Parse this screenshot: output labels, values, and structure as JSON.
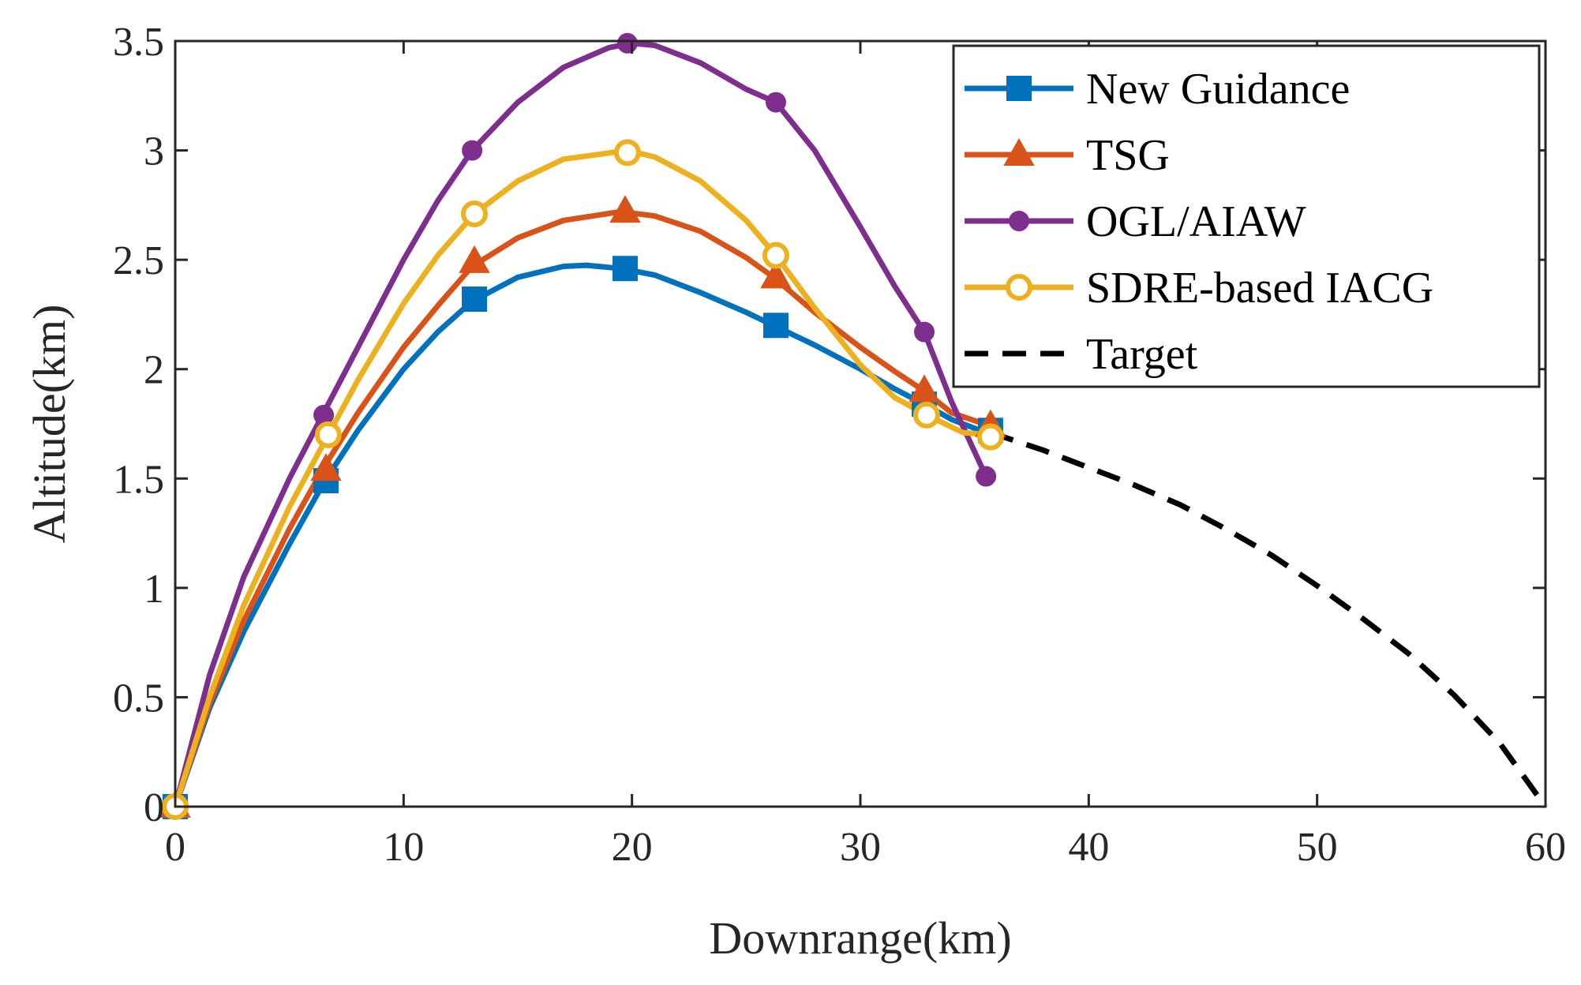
{
  "chart_data": {
    "type": "line",
    "title": "",
    "xlabel": "Downrange(km)",
    "ylabel": "Altitude(km)",
    "xlim": [
      0,
      60
    ],
    "ylim": [
      0,
      3.5
    ],
    "xticks": [
      0,
      10,
      20,
      30,
      40,
      50,
      60
    ],
    "xtick_labels": [
      "0",
      "10",
      "20",
      "30",
      "40",
      "50",
      "60"
    ],
    "yticks": [
      0,
      0.5,
      1,
      1.5,
      2,
      2.5,
      3,
      3.5
    ],
    "ytick_labels": [
      "0",
      "0.5",
      "1",
      "1.5",
      "2",
      "2.5",
      "3",
      "3.5"
    ],
    "grid": false,
    "legend_position": "top-right",
    "series": [
      {
        "name": "New Guidance",
        "color": "#0072BD",
        "marker": "square",
        "dash": "solid",
        "curve": [
          [
            0,
            0
          ],
          [
            1.5,
            0.45
          ],
          [
            3,
            0.8
          ],
          [
            5,
            1.2
          ],
          [
            6.5,
            1.48
          ],
          [
            8,
            1.72
          ],
          [
            10,
            2.0
          ],
          [
            11.5,
            2.17
          ],
          [
            13,
            2.31
          ],
          [
            15,
            2.42
          ],
          [
            17,
            2.47
          ],
          [
            18,
            2.475
          ],
          [
            19.5,
            2.46
          ],
          [
            21,
            2.43
          ],
          [
            23,
            2.35
          ],
          [
            25,
            2.26
          ],
          [
            26.2,
            2.2
          ],
          [
            28,
            2.11
          ],
          [
            30,
            2.0
          ],
          [
            31.5,
            1.91
          ],
          [
            32.8,
            1.84
          ],
          [
            34,
            1.77
          ],
          [
            35.5,
            1.71
          ]
        ],
        "markers": [
          [
            0,
            0
          ],
          [
            6.6,
            1.49
          ],
          [
            13.1,
            2.32
          ],
          [
            19.7,
            2.46
          ],
          [
            26.3,
            2.2
          ],
          [
            32.8,
            1.84
          ],
          [
            35.7,
            1.72
          ]
        ]
      },
      {
        "name": "TSG",
        "color": "#D95319",
        "marker": "triangle",
        "dash": "solid",
        "curve": [
          [
            0,
            0
          ],
          [
            1.5,
            0.47
          ],
          [
            3,
            0.85
          ],
          [
            5,
            1.27
          ],
          [
            6.5,
            1.55
          ],
          [
            8,
            1.8
          ],
          [
            10,
            2.1
          ],
          [
            11.5,
            2.29
          ],
          [
            13,
            2.47
          ],
          [
            15,
            2.6
          ],
          [
            17,
            2.68
          ],
          [
            19.5,
            2.72
          ],
          [
            21,
            2.7
          ],
          [
            23,
            2.63
          ],
          [
            25,
            2.51
          ],
          [
            26.2,
            2.42
          ],
          [
            28,
            2.26
          ],
          [
            30,
            2.1
          ],
          [
            31.5,
            1.99
          ],
          [
            32.8,
            1.9
          ],
          [
            34,
            1.8
          ],
          [
            35.7,
            1.74
          ]
        ],
        "markers": [
          [
            0,
            0
          ],
          [
            6.6,
            1.54
          ],
          [
            13.1,
            2.49
          ],
          [
            19.7,
            2.72
          ],
          [
            26.3,
            2.42
          ],
          [
            32.8,
            1.9
          ],
          [
            35.7,
            1.74
          ]
        ]
      },
      {
        "name": "OGL/AIAW",
        "color": "#7E2F8E",
        "marker": "filled-circle",
        "dash": "solid",
        "curve": [
          [
            0,
            0
          ],
          [
            1.5,
            0.6
          ],
          [
            3,
            1.05
          ],
          [
            5,
            1.5
          ],
          [
            6.5,
            1.8
          ],
          [
            8,
            2.1
          ],
          [
            10,
            2.5
          ],
          [
            11.5,
            2.77
          ],
          [
            13,
            3.0
          ],
          [
            15,
            3.22
          ],
          [
            17,
            3.38
          ],
          [
            19,
            3.47
          ],
          [
            20,
            3.49
          ],
          [
            21,
            3.48
          ],
          [
            23,
            3.4
          ],
          [
            25,
            3.28
          ],
          [
            26.3,
            3.22
          ],
          [
            28,
            3.0
          ],
          [
            30,
            2.65
          ],
          [
            31.5,
            2.38
          ],
          [
            32.8,
            2.17
          ],
          [
            34,
            1.85
          ],
          [
            35.5,
            1.51
          ]
        ],
        "markers": [
          [
            0,
            0
          ],
          [
            6.5,
            1.79
          ],
          [
            13.0,
            3.0
          ],
          [
            19.8,
            3.49
          ],
          [
            26.3,
            3.22
          ],
          [
            32.8,
            2.17
          ],
          [
            35.5,
            1.51
          ]
        ]
      },
      {
        "name": "SDRE-based IACG",
        "color": "#EDB120",
        "marker": "open-circle",
        "dash": "solid",
        "curve": [
          [
            0,
            0
          ],
          [
            1.5,
            0.5
          ],
          [
            3,
            0.92
          ],
          [
            5,
            1.37
          ],
          [
            6.7,
            1.7
          ],
          [
            8,
            1.95
          ],
          [
            10,
            2.3
          ],
          [
            11.5,
            2.52
          ],
          [
            13.1,
            2.71
          ],
          [
            15,
            2.86
          ],
          [
            17,
            2.96
          ],
          [
            19.8,
            3.0
          ],
          [
            21,
            2.97
          ],
          [
            23,
            2.86
          ],
          [
            25,
            2.68
          ],
          [
            26.3,
            2.52
          ],
          [
            28,
            2.28
          ],
          [
            30,
            2.02
          ],
          [
            31.5,
            1.87
          ],
          [
            32.9,
            1.79
          ],
          [
            34.5,
            1.71
          ],
          [
            35.7,
            1.7
          ]
        ],
        "markers": [
          [
            0,
            0
          ],
          [
            6.7,
            1.7
          ],
          [
            13.1,
            2.71
          ],
          [
            19.8,
            2.99
          ],
          [
            26.3,
            2.52
          ],
          [
            32.9,
            1.79
          ],
          [
            35.7,
            1.69
          ]
        ]
      },
      {
        "name": "Target",
        "color": "#000000",
        "marker": "none",
        "dash": "dashed",
        "curve": [
          [
            35.7,
            1.71
          ],
          [
            38,
            1.63
          ],
          [
            40,
            1.55
          ],
          [
            42,
            1.47
          ],
          [
            44,
            1.38
          ],
          [
            46,
            1.27
          ],
          [
            48,
            1.15
          ],
          [
            50,
            1.01
          ],
          [
            52,
            0.86
          ],
          [
            54,
            0.7
          ],
          [
            56,
            0.51
          ],
          [
            58,
            0.29
          ],
          [
            60,
            0.0
          ]
        ],
        "markers": []
      }
    ]
  }
}
